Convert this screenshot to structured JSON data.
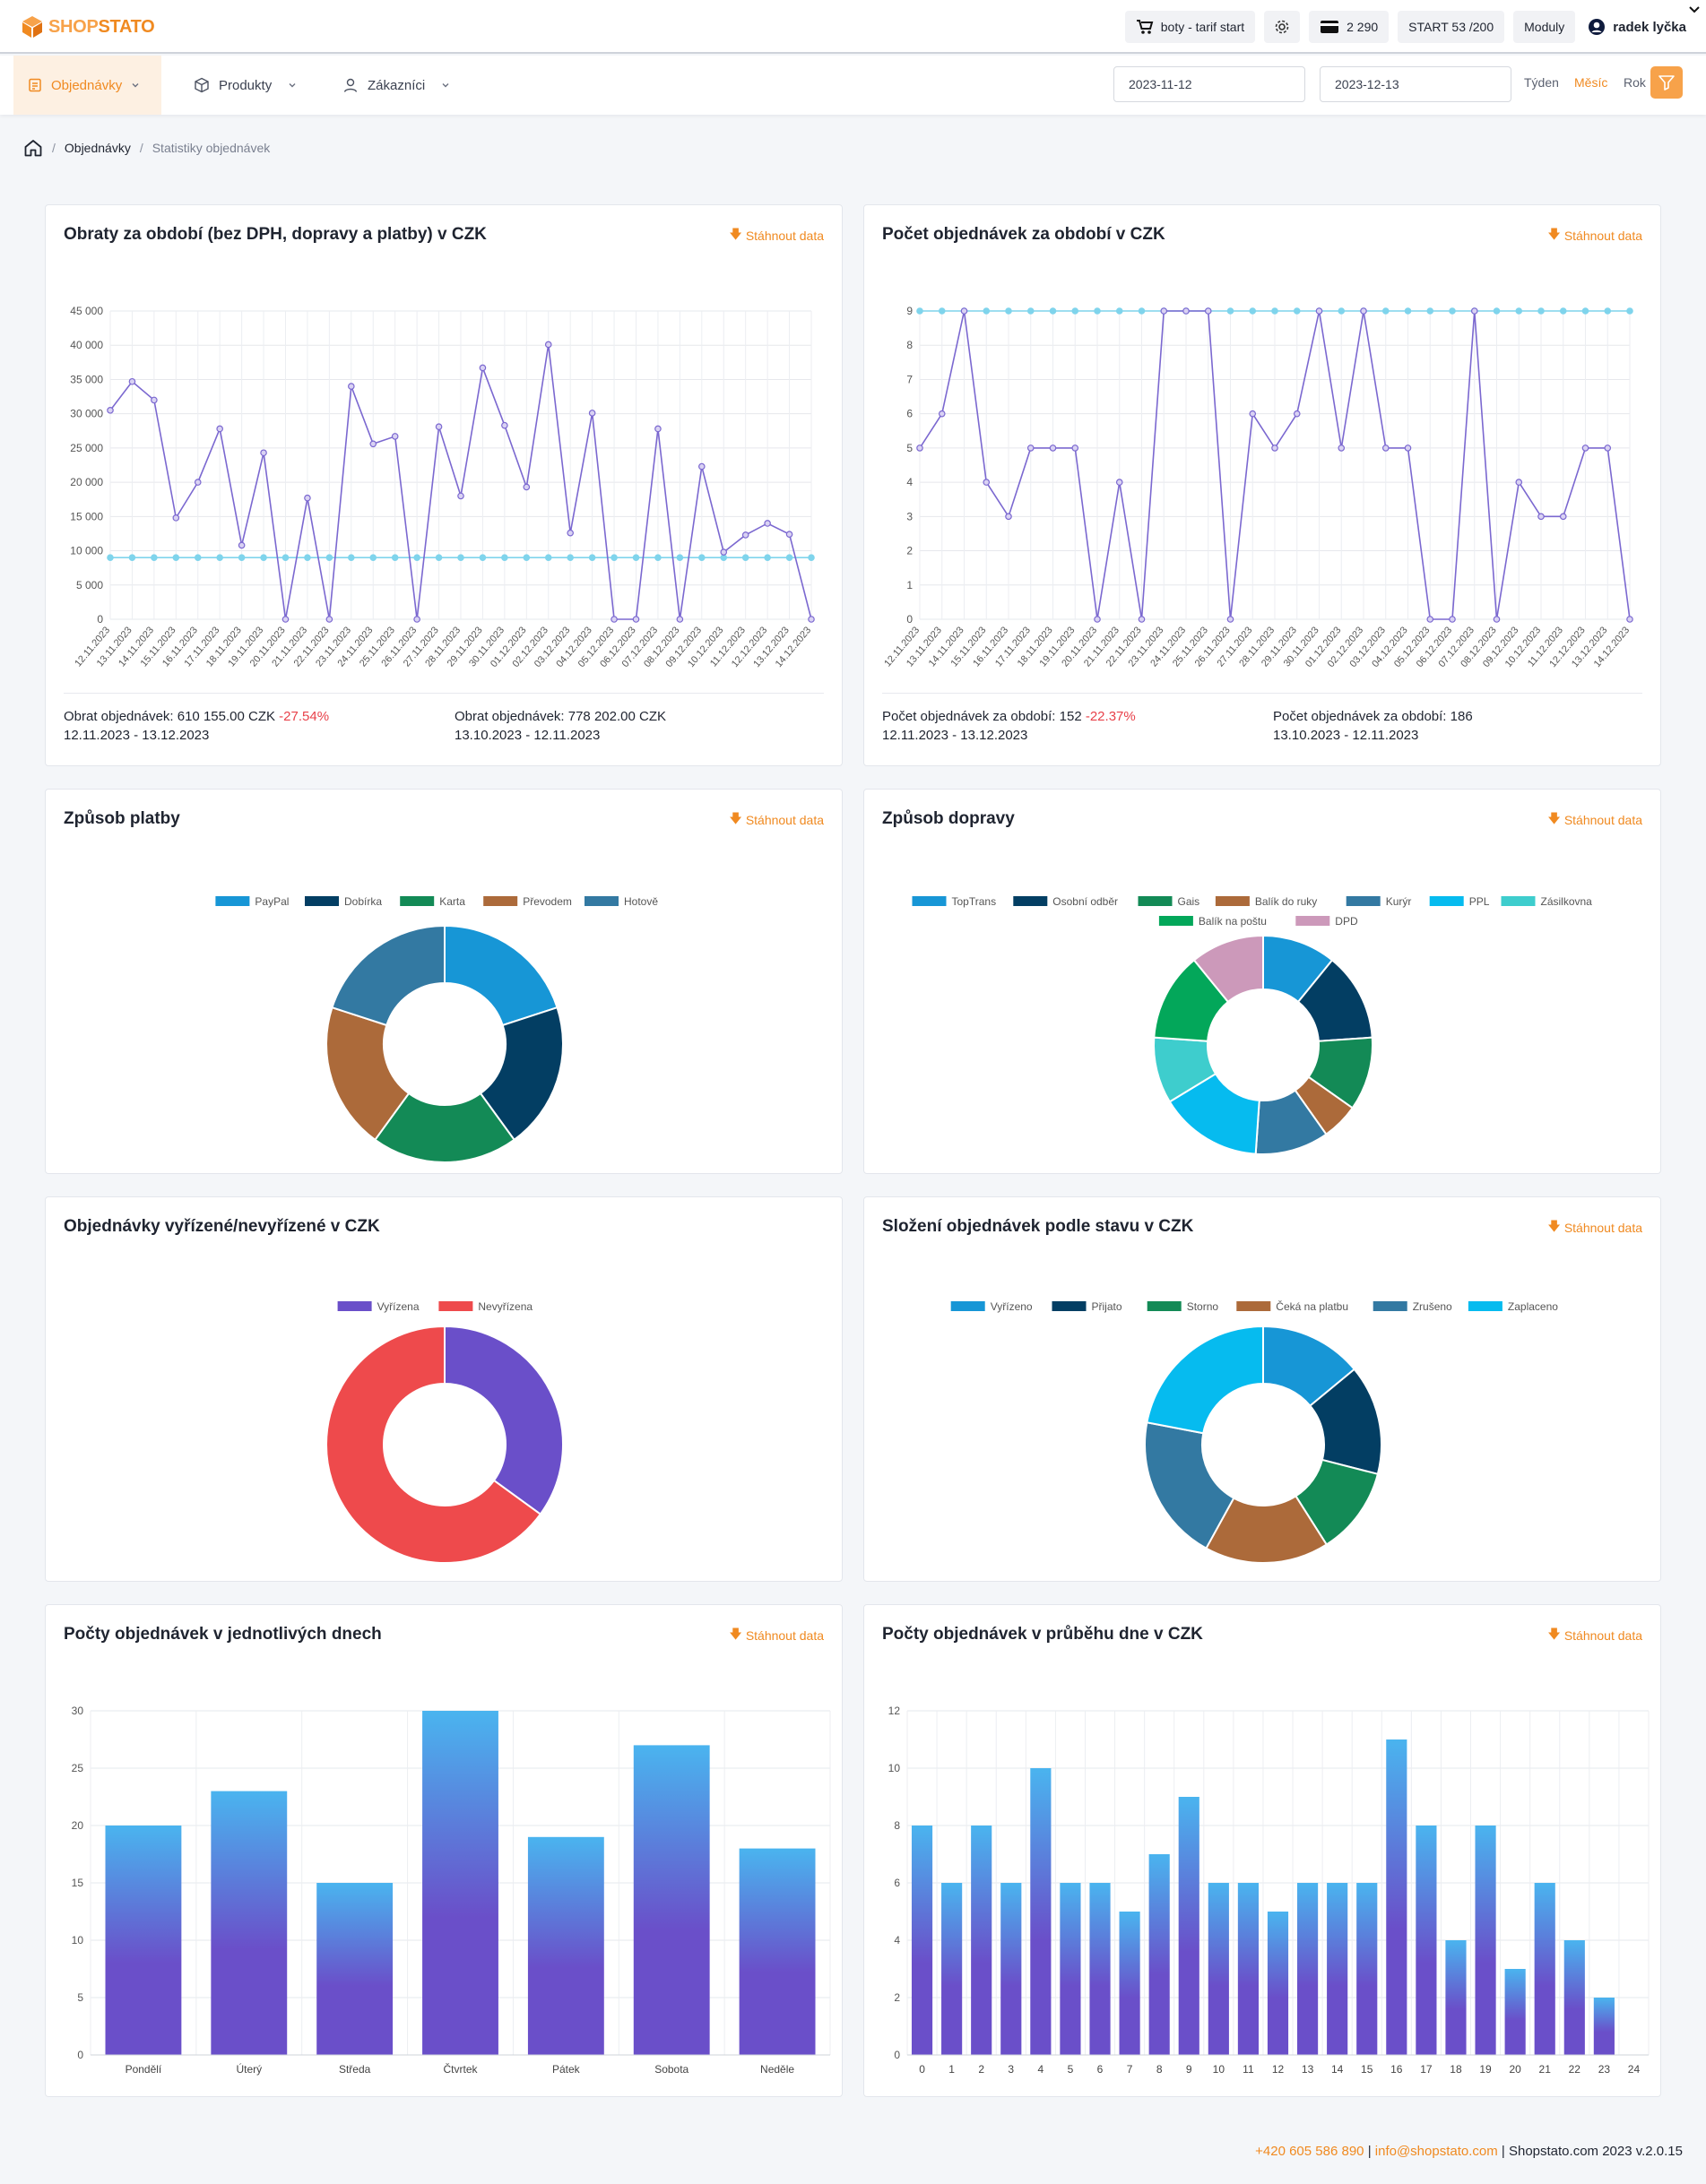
{
  "brand": {
    "part1": "SHOP",
    "part2": "STATO"
  },
  "topbar": {
    "shop_label": "boty - tarif start",
    "credits_label": "2 290",
    "plan_label": "START 53 /200",
    "modules_label": "Moduly",
    "user_name": "radek lyčka"
  },
  "nav": {
    "orders": "Objednávky",
    "products": "Produkty",
    "customers": "Zákazníci",
    "date_from": "2023-11-12",
    "date_to": "2023-12-13",
    "week": "Týden",
    "month": "Měsíc",
    "year": "Rok"
  },
  "breadcrumb": {
    "orders": "Objednávky",
    "current": "Statistiky objednávek"
  },
  "download_label": "Stáhnout data",
  "colors": {
    "accent": "#f08a21",
    "primary_series": "#7b68d0",
    "secondary_series": "#7fd4ec",
    "negative": "#e8414a"
  },
  "cards": {
    "revenue": {
      "title": "Obraty za období (bez DPH, dopravy a platby) v CZK",
      "footer_left_text": "Obrat objednávek: 610 155.00 CZK",
      "footer_left_change": "-27.54%",
      "footer_left_range": "12.11.2023 - 13.12.2023",
      "footer_right_text": "Obrat objednávek: 778 202.00 CZK",
      "footer_right_range": "13.10.2023 - 12.11.2023"
    },
    "count": {
      "title": "Počet objednávek za období v CZK",
      "footer_left_text": "Počet objednávek za období: 152",
      "footer_left_change": "-22.37%",
      "footer_left_range": "12.11.2023 - 13.12.2023",
      "footer_right_text": "Počet objednávek za období: 186",
      "footer_right_range": "13.10.2023 - 12.11.2023"
    },
    "payment": {
      "title": "Způsob platby"
    },
    "shipping": {
      "title": "Způsob dopravy"
    },
    "handled": {
      "title": "Objednávky vyřízené/nevyřízené v CZK"
    },
    "status": {
      "title": "Složení objednávek podle stavu v CZK"
    },
    "weekday": {
      "title": "Počty objednávek v jednotlivých dnech"
    },
    "hourly": {
      "title": "Počty objednávek v průběhu dne v CZK"
    }
  },
  "chart_data": [
    {
      "id": "revenue",
      "type": "line",
      "x": [
        "12.11.2023",
        "13.11.2023",
        "14.11.2023",
        "15.11.2023",
        "16.11.2023",
        "17.11.2023",
        "18.11.2023",
        "19.11.2023",
        "20.11.2023",
        "21.11.2023",
        "22.11.2023",
        "23.11.2023",
        "24.11.2023",
        "25.11.2023",
        "26.11.2023",
        "27.11.2023",
        "28.11.2023",
        "29.11.2023",
        "30.11.2023",
        "01.12.2023",
        "02.12.2023",
        "03.12.2023",
        "04.12.2023",
        "05.12.2023",
        "06.12.2023",
        "07.12.2023",
        "08.12.2023",
        "09.12.2023",
        "10.12.2023",
        "11.12.2023",
        "12.12.2023",
        "13.12.2023",
        "14.12.2023"
      ],
      "series": [
        {
          "values": [
            30500,
            34700,
            32000,
            14800,
            20000,
            27800,
            10800,
            24300,
            0,
            17700,
            0,
            34000,
            25600,
            26700,
            0,
            28100,
            18000,
            36700,
            28300,
            19300,
            40100,
            12600,
            30100,
            0,
            0,
            27800,
            0,
            22300,
            9800,
            12300,
            14000,
            12400,
            0
          ]
        },
        {
          "values": [
            9000,
            9000,
            9000,
            9000,
            9000,
            9000,
            9000,
            9000,
            9000,
            9000,
            9000,
            9000,
            9000,
            9000,
            9000,
            9000,
            9000,
            9000,
            9000,
            9000,
            9000,
            9000,
            9000,
            9000,
            9000,
            9000,
            9000,
            9000,
            9000,
            9000,
            9000,
            9000,
            9000
          ]
        }
      ],
      "yticks": [
        "0",
        "5 000",
        "10 000",
        "15 000",
        "20 000",
        "25 000",
        "30 000",
        "35 000",
        "40 000",
        "45 000"
      ],
      "ylim": [
        0,
        45000
      ],
      "grid": true
    },
    {
      "id": "count",
      "type": "line",
      "x": [
        "12.11.2023",
        "13.11.2023",
        "14.11.2023",
        "15.11.2023",
        "16.11.2023",
        "17.11.2023",
        "18.11.2023",
        "19.11.2023",
        "20.11.2023",
        "21.11.2023",
        "22.11.2023",
        "23.11.2023",
        "24.11.2023",
        "25.11.2023",
        "26.11.2023",
        "27.11.2023",
        "28.11.2023",
        "29.11.2023",
        "30.11.2023",
        "01.12.2023",
        "02.12.2023",
        "03.12.2023",
        "04.12.2023",
        "05.12.2023",
        "06.12.2023",
        "07.12.2023",
        "08.12.2023",
        "09.12.2023",
        "10.12.2023",
        "11.12.2023",
        "12.12.2023",
        "13.12.2023",
        "14.12.2023"
      ],
      "series": [
        {
          "values": [
            5,
            6,
            9,
            4,
            3,
            5,
            5,
            5,
            0,
            4,
            0,
            9,
            9,
            9,
            0,
            6,
            5,
            6,
            9,
            5,
            9,
            5,
            5,
            0,
            0,
            9,
            0,
            4,
            3,
            3,
            5,
            5,
            0
          ]
        },
        {
          "values": [
            9,
            9,
            9,
            9,
            9,
            9,
            9,
            9,
            9,
            9,
            9,
            9,
            9,
            9,
            9,
            9,
            9,
            9,
            9,
            9,
            9,
            9,
            9,
            9,
            9,
            9,
            9,
            9,
            9,
            9,
            9,
            9,
            9
          ]
        }
      ],
      "yticks": [
        "0",
        "1",
        "2",
        "3",
        "4",
        "5",
        "6",
        "7",
        "8",
        "9"
      ],
      "ylim": [
        0,
        9
      ],
      "grid": true
    },
    {
      "id": "payment",
      "type": "pie",
      "labels": [
        "PayPal",
        "Dobírka",
        "Karta",
        "Převodem",
        "Hotově"
      ],
      "values": [
        20,
        20,
        20,
        20,
        20
      ],
      "colors": [
        "#1796d6",
        "#033e63",
        "#138a56",
        "#ac6a3a",
        "#3379a2"
      ],
      "legend": "top"
    },
    {
      "id": "shipping",
      "type": "pie",
      "labels": [
        "TopTrans",
        "Osobní odběr",
        "Gais",
        "Balík do ruky",
        "Kurýr",
        "PPL",
        "Zásilkovna",
        "Balík na poštu",
        "DPD"
      ],
      "values": [
        10,
        12,
        10,
        5,
        10,
        14,
        9,
        12,
        10
      ],
      "colors": [
        "#1796d6",
        "#033e63",
        "#138a56",
        "#ac6a3a",
        "#3379a2",
        "#06bbef",
        "#3ecdcd",
        "#03a75a",
        "#cc99ba"
      ],
      "legend": "top"
    },
    {
      "id": "handled",
      "type": "pie",
      "labels": [
        "Vyřízena",
        "Nevyřízena"
      ],
      "values": [
        35,
        65
      ],
      "colors": [
        "#6a4fc9",
        "#ee4a4c"
      ],
      "legend": "top"
    },
    {
      "id": "status",
      "type": "pie",
      "labels": [
        "Vyřízeno",
        "Přijato",
        "Storno",
        "Čeká na platbu",
        "Zrušeno",
        "Zaplaceno"
      ],
      "values": [
        14,
        15,
        12,
        17,
        20,
        22
      ],
      "colors": [
        "#1796d6",
        "#033e63",
        "#138a56",
        "#ac6a3a",
        "#3379a2",
        "#06bbef"
      ],
      "legend": "top"
    },
    {
      "id": "weekday",
      "type": "bar",
      "categories": [
        "Pondělí",
        "Úterý",
        "Středa",
        "Čtvrtek",
        "Pátek",
        "Sobota",
        "Neděle"
      ],
      "values": [
        20,
        23,
        15,
        30,
        19,
        27,
        18
      ],
      "yticks": [
        "0",
        "5",
        "10",
        "15",
        "20",
        "25",
        "30"
      ],
      "ylim": [
        0,
        30
      ]
    },
    {
      "id": "hourly",
      "type": "bar",
      "categories": [
        "0",
        "1",
        "2",
        "3",
        "4",
        "5",
        "6",
        "7",
        "8",
        "9",
        "10",
        "11",
        "12",
        "13",
        "14",
        "15",
        "16",
        "17",
        "18",
        "19",
        "20",
        "21",
        "22",
        "23",
        "24"
      ],
      "values": [
        8,
        6,
        8,
        6,
        10,
        6,
        6,
        5,
        7,
        9,
        6,
        6,
        5,
        6,
        6,
        6,
        11,
        8,
        4,
        8,
        3,
        6,
        4,
        2,
        0
      ],
      "yticks": [
        "0",
        "2",
        "4",
        "6",
        "8",
        "10",
        "12"
      ],
      "ylim": [
        0,
        12
      ]
    }
  ],
  "footer": {
    "phone": "+420 605 586 890",
    "email": "info@shopstato.com",
    "copyright": "| Shopstato.com 2023 v.2.0.15",
    "divider": "|"
  }
}
